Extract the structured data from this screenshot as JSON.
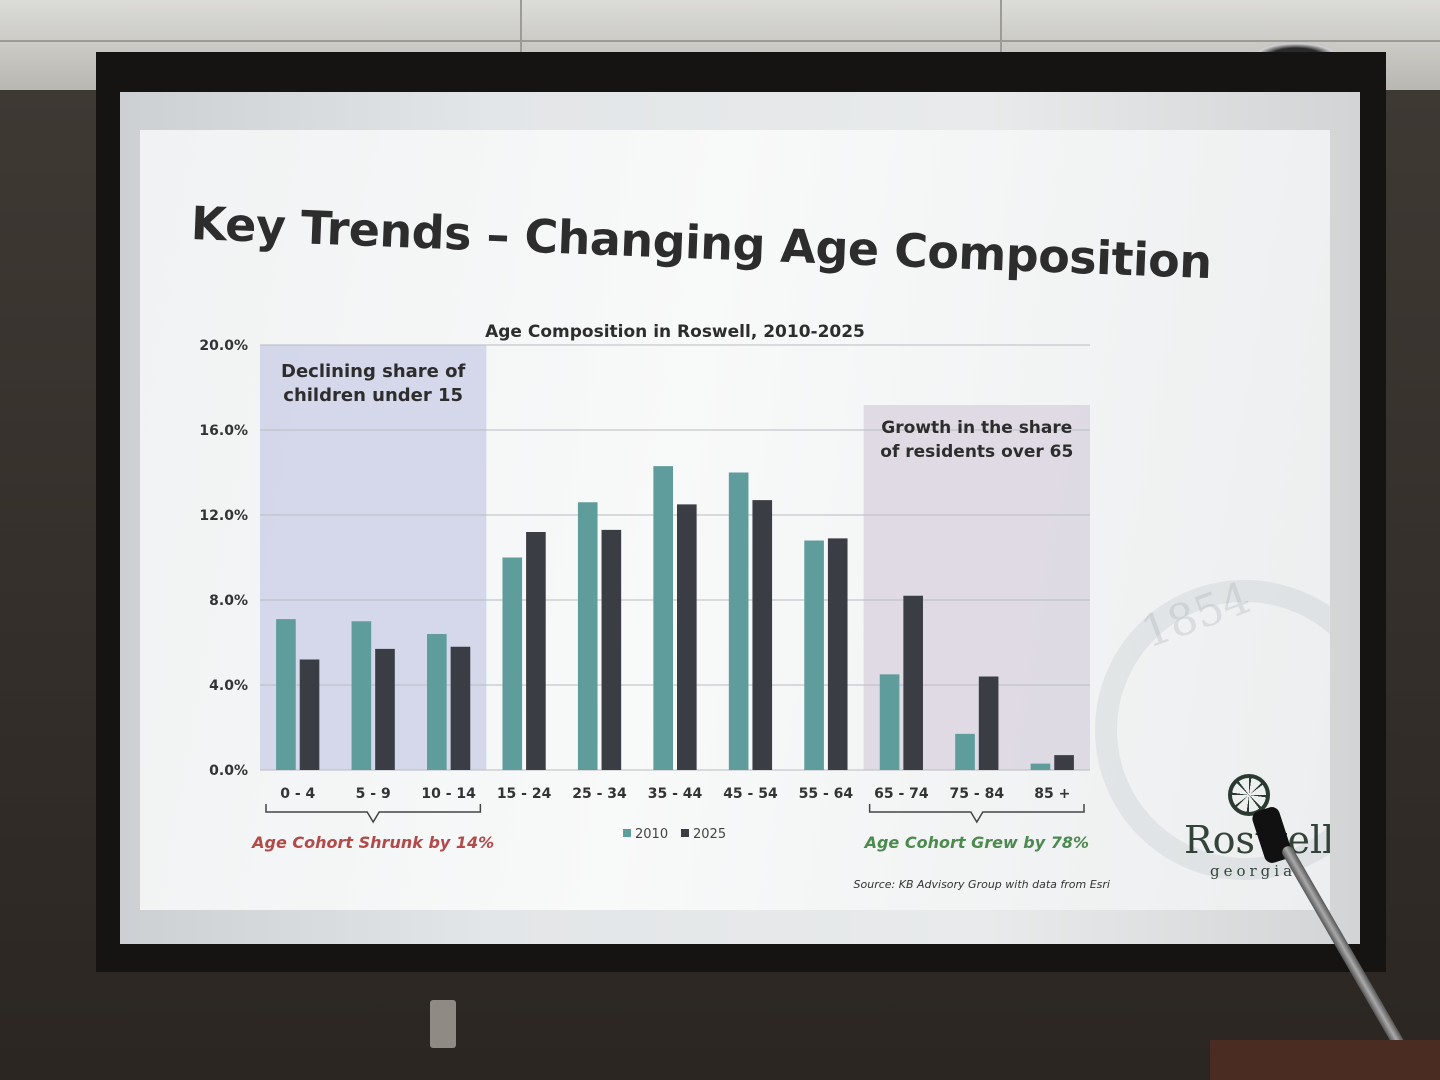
{
  "slide": {
    "title": "Key Trends – Changing Age Composition",
    "logo_text": "Roswell",
    "logo_sub": "georgia",
    "seal_year": "1854"
  },
  "chart_data": {
    "type": "bar",
    "title": "Age Composition in Roswell, 2010-2025",
    "categories": [
      "0 - 4",
      "5 - 9",
      "10 - 14",
      "15 - 24",
      "25 - 34",
      "35 - 44",
      "45 - 54",
      "55 - 64",
      "65 - 74",
      "75 - 84",
      "85 +"
    ],
    "series": [
      {
        "name": "2010",
        "color": "#5f9c9c",
        "values": [
          7.1,
          7.0,
          6.4,
          10.0,
          12.6,
          14.3,
          14.0,
          10.8,
          4.5,
          1.7,
          0.3
        ]
      },
      {
        "name": "2025",
        "color": "#3b3d44",
        "values": [
          5.2,
          5.7,
          5.8,
          11.2,
          11.3,
          12.5,
          12.7,
          10.9,
          8.2,
          4.4,
          0.7
        ]
      }
    ],
    "y_ticks": [
      "0.0%",
      "4.0%",
      "8.0%",
      "12.0%",
      "16.0%",
      "20.0%"
    ],
    "ylim": [
      0,
      20
    ],
    "grid": true,
    "legend": "bottom-center",
    "annotations": {
      "left_box": "Declining share of children under 15",
      "right_box": "Growth in the share of residents over 65",
      "left_bracket": "Age Cohort Shrunk by 14%",
      "right_bracket": "Age Cohort Grew by 78%",
      "source": "Source: KB Advisory Group with data from Esri"
    }
  }
}
